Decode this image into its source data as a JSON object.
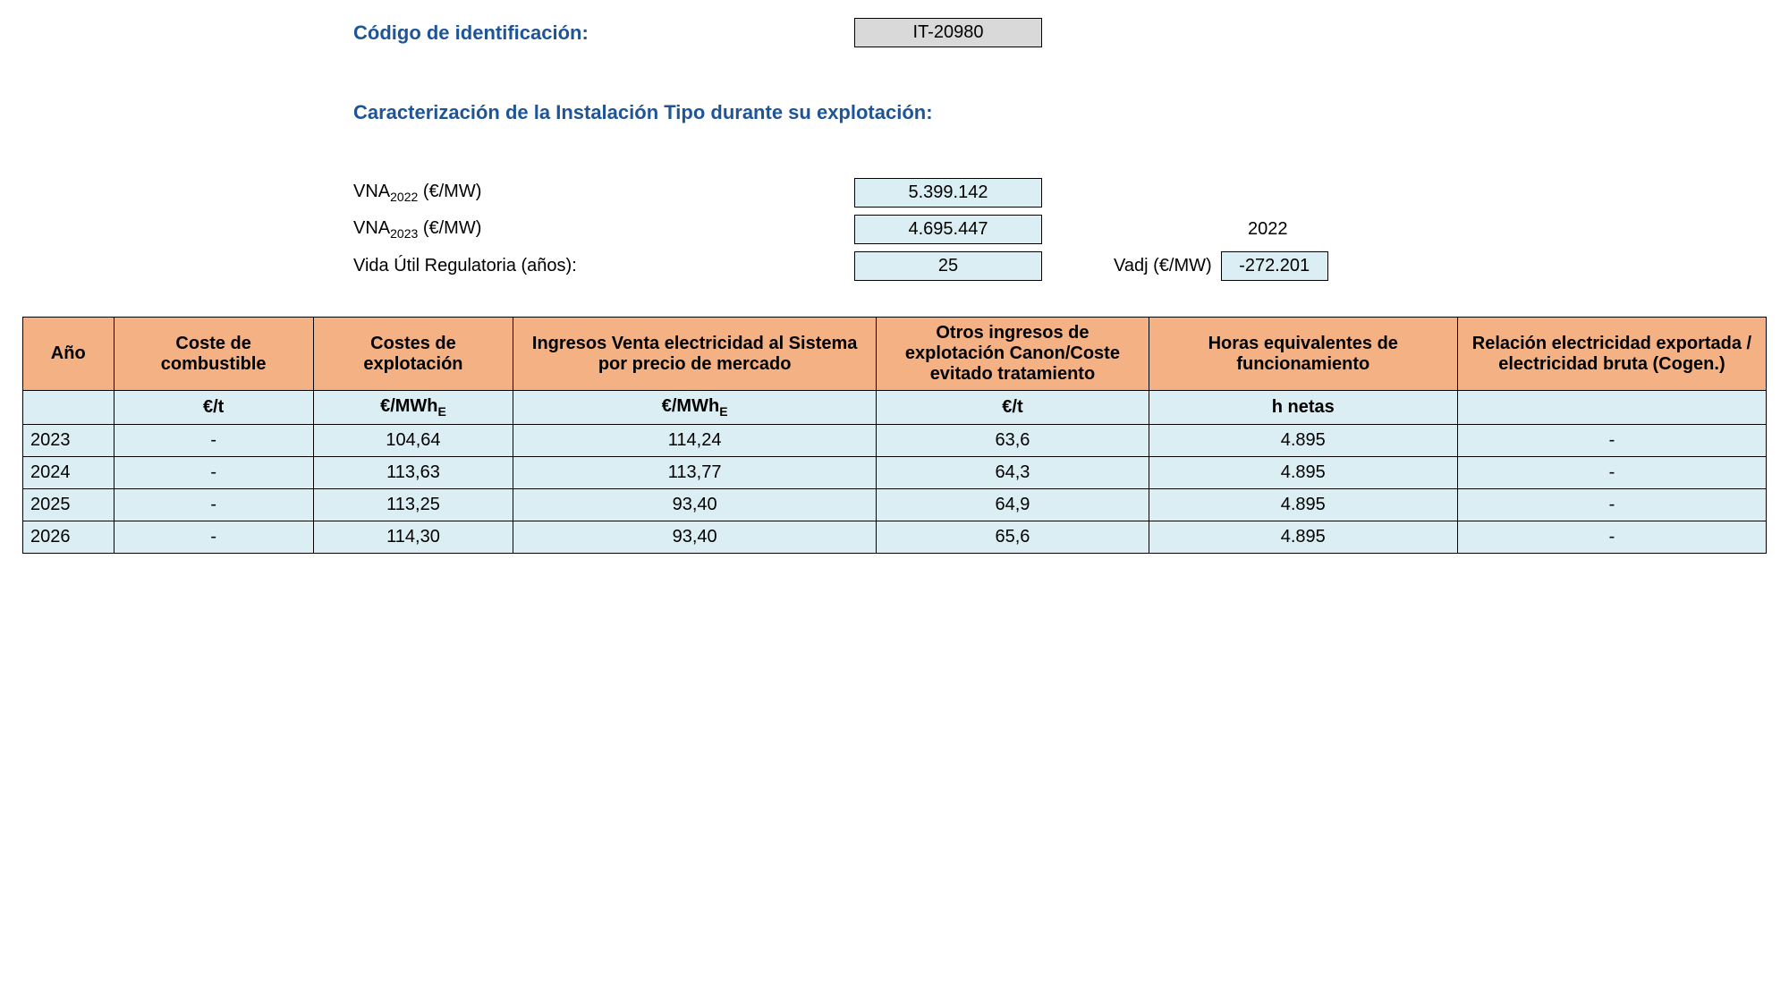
{
  "header": {
    "id_label": "Código de identificación:",
    "id_value": "IT-20980",
    "caracterizacion_label": "Caracterización de la Instalación Tipo durante su explotación:"
  },
  "params": {
    "vna2022_label_prefix": "VNA",
    "vna2022_label_sub": "2022",
    "vna2022_label_suffix": " (€/MW)",
    "vna2022_value": "5.399.142",
    "vna2023_label_prefix": "VNA",
    "vna2023_label_sub": "2023",
    "vna2023_label_suffix": " (€/MW)",
    "vna2023_value": "4.695.447",
    "year_right": "2022",
    "vida_label": "Vida Útil Regulatoria (años):",
    "vida_value": "25",
    "vadj_label": "Vadj (€/MW)",
    "vadj_value": "-272.201"
  },
  "table": {
    "headers": {
      "ano": "Año",
      "coste_comb": "Coste de combustible",
      "costes_expl": "Costes de explotación",
      "ingresos": "Ingresos Venta electricidad al Sistema por precio de mercado",
      "otros": "Otros ingresos de explotación Canon/Coste evitado tratamiento",
      "horas": "Horas equivalentes de funcionamiento",
      "relacion": "Relación electricidad exportada / electricidad bruta (Cogen.)"
    },
    "units": {
      "ano": "",
      "coste_comb": "€/t",
      "costes_expl_prefix": "€/MWh",
      "costes_expl_sub": "E",
      "ingresos_prefix": "€/MWh",
      "ingresos_sub": "E",
      "otros": "€/t",
      "horas": "h netas",
      "relacion": ""
    },
    "rows": [
      {
        "ano": "2023",
        "coste_comb": "-",
        "costes_expl": "104,64",
        "ingresos": "114,24",
        "otros": "63,6",
        "horas": "4.895",
        "relacion": "-"
      },
      {
        "ano": "2024",
        "coste_comb": "-",
        "costes_expl": "113,63",
        "ingresos": "113,77",
        "otros": "64,3",
        "horas": "4.895",
        "relacion": "-"
      },
      {
        "ano": "2025",
        "coste_comb": "-",
        "costes_expl": "113,25",
        "ingresos": "93,40",
        "otros": "64,9",
        "horas": "4.895",
        "relacion": "-"
      },
      {
        "ano": "2026",
        "coste_comb": "-",
        "costes_expl": "114,30",
        "ingresos": "93,40",
        "otros": "65,6",
        "horas": "4.895",
        "relacion": "-"
      }
    ],
    "col_widths": {
      "ano": "5%",
      "coste_comb": "11%",
      "costes_expl": "11%",
      "ingresos": "20%",
      "otros": "15%",
      "horas": "17%",
      "relacion": "17%"
    }
  },
  "colors": {
    "heading": "#1f5496",
    "box_gray": "#d9d9d9",
    "box_blue": "#dbeef3",
    "header_bg": "#f4b183",
    "border": "#000000",
    "background": "#ffffff"
  }
}
